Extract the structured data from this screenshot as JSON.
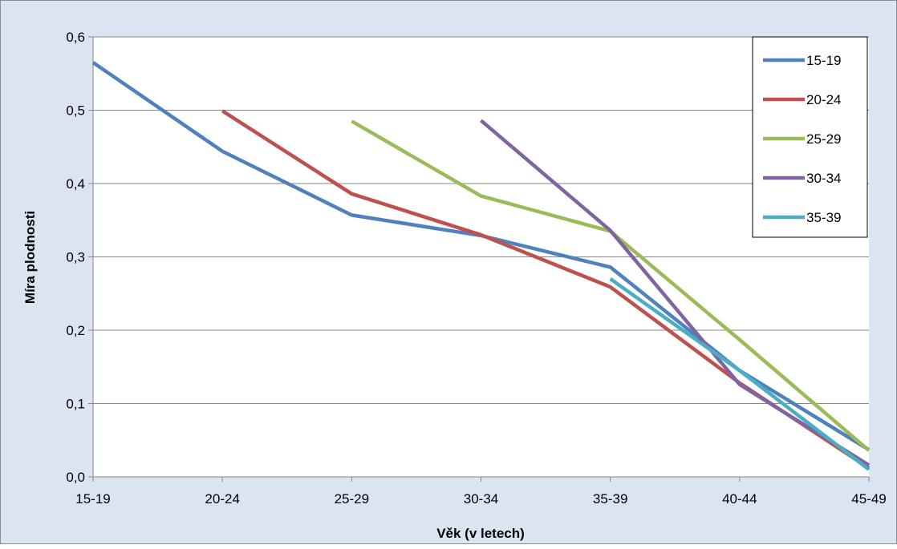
{
  "chart_data": {
    "type": "line",
    "title": "",
    "xlabel": "Věk (v letech)",
    "ylabel": "Míra plodnosti",
    "categories": [
      "15-19",
      "20-24",
      "25-29",
      "30-34",
      "35-39",
      "40-44",
      "45-49"
    ],
    "ylim": [
      0,
      0.6
    ],
    "yticks": [
      "0,0",
      "0,1",
      "0,2",
      "0,3",
      "0,4",
      "0,5",
      "0,6"
    ],
    "grid": true,
    "legend_position": "top-right",
    "series": [
      {
        "name": "15-19",
        "color": "#4f81bd",
        "values": [
          0.565,
          0.444,
          0.357,
          0.329,
          0.286,
          0.145,
          0.037
        ]
      },
      {
        "name": "20-24",
        "color": "#c0504d",
        "values": [
          null,
          0.499,
          0.386,
          0.33,
          0.259,
          0.128,
          0.012
        ]
      },
      {
        "name": "25-29",
        "color": "#9bbb59",
        "values": [
          null,
          null,
          0.485,
          0.383,
          0.335,
          0.187,
          0.036
        ]
      },
      {
        "name": "30-34",
        "color": "#8064a2",
        "values": [
          null,
          null,
          null,
          0.486,
          0.336,
          0.126,
          0.016
        ]
      },
      {
        "name": "35-39",
        "color": "#4bacc6",
        "values": [
          null,
          null,
          null,
          null,
          0.27,
          0.145,
          0.01
        ]
      }
    ]
  }
}
